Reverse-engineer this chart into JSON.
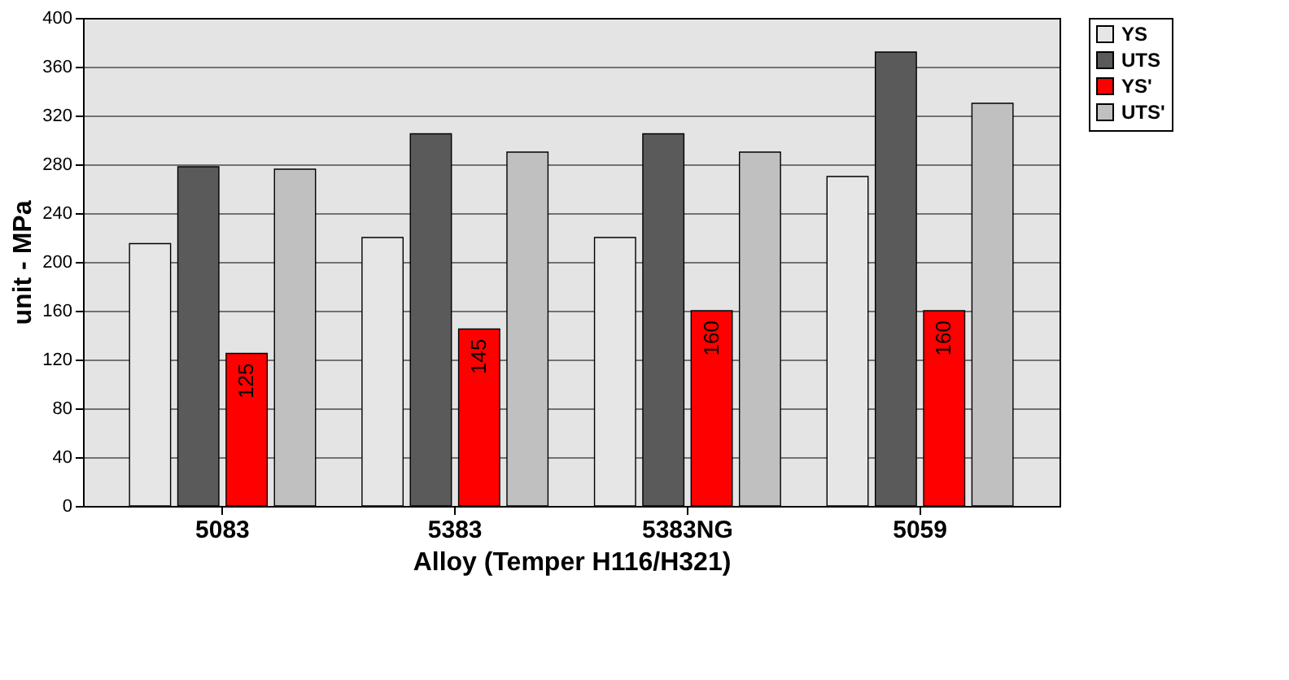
{
  "chart_data": {
    "type": "bar",
    "xlabel": "Alloy (Temper H116/H321)",
    "ylabel": "unit - MPa",
    "categories": [
      "5083",
      "5383",
      "5383NG",
      "5059"
    ],
    "series": [
      {
        "name": "YS",
        "color": "#e6e6e6",
        "values": [
          215,
          220,
          220,
          270
        ]
      },
      {
        "name": "UTS",
        "color": "#5a5a5a",
        "values": [
          278,
          305,
          305,
          372
        ]
      },
      {
        "name": "YS'",
        "color": "#ff0000",
        "values": [
          125,
          145,
          160,
          160
        ],
        "value_labels": [
          "125",
          "145",
          "160",
          "160"
        ]
      },
      {
        "name": "UTS'",
        "color": "#c0c0c0",
        "values": [
          276,
          290,
          290,
          330
        ]
      }
    ],
    "ylim": [
      0,
      400
    ],
    "yticks": [
      0,
      40,
      80,
      120,
      160,
      200,
      240,
      280,
      320,
      360,
      400
    ],
    "grid": "y",
    "legend": "top right"
  }
}
